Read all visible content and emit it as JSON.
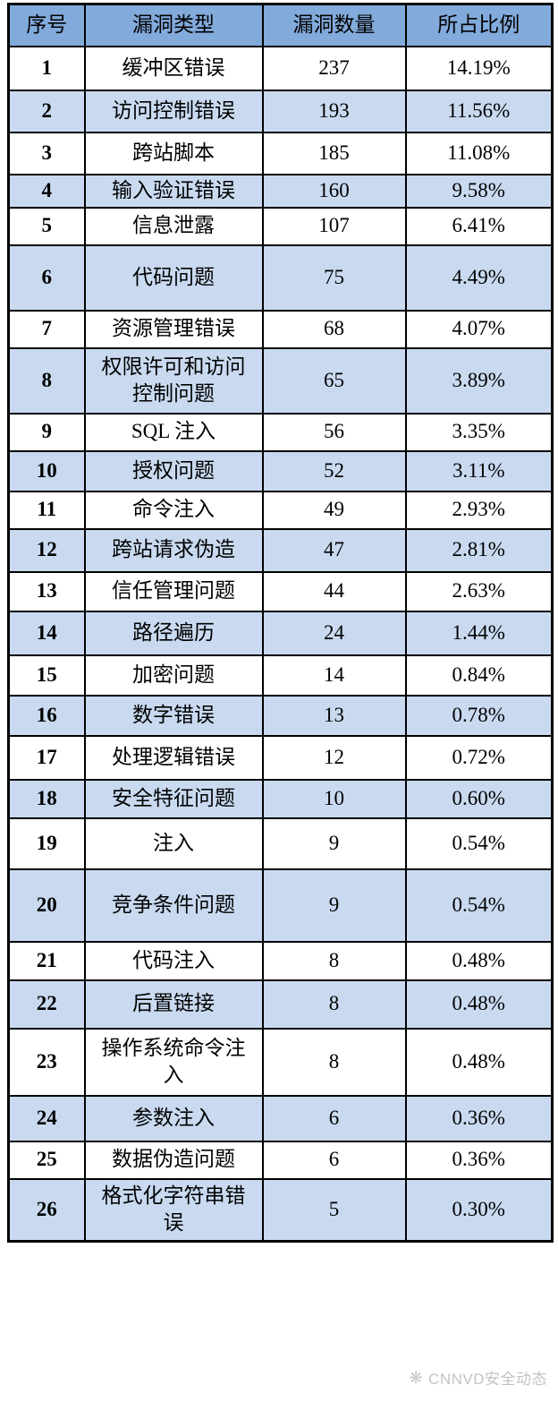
{
  "table": {
    "headers": [
      "序号",
      "漏洞类型",
      "漏洞数量",
      "所占比例"
    ],
    "rows": [
      {
        "no": "1",
        "type": "缓冲区错误",
        "count": "237",
        "pct": "14.19%"
      },
      {
        "no": "2",
        "type": "访问控制错误",
        "count": "193",
        "pct": "11.56%"
      },
      {
        "no": "3",
        "type": "跨站脚本",
        "count": "185",
        "pct": "11.08%"
      },
      {
        "no": "4",
        "type": "输入验证错误",
        "count": "160",
        "pct": "9.58%"
      },
      {
        "no": "5",
        "type": "信息泄露",
        "count": "107",
        "pct": "6.41%"
      },
      {
        "no": "6",
        "type": "代码问题",
        "count": "75",
        "pct": "4.49%"
      },
      {
        "no": "7",
        "type": "资源管理错误",
        "count": "68",
        "pct": "4.07%"
      },
      {
        "no": "8",
        "type": "权限许可和访问控制问题",
        "count": "65",
        "pct": "3.89%"
      },
      {
        "no": "9",
        "type": "SQL 注入",
        "count": "56",
        "pct": "3.35%"
      },
      {
        "no": "10",
        "type": "授权问题",
        "count": "52",
        "pct": "3.11%"
      },
      {
        "no": "11",
        "type": "命令注入",
        "count": "49",
        "pct": "2.93%"
      },
      {
        "no": "12",
        "type": "跨站请求伪造",
        "count": "47",
        "pct": "2.81%"
      },
      {
        "no": "13",
        "type": "信任管理问题",
        "count": "44",
        "pct": "2.63%"
      },
      {
        "no": "14",
        "type": "路径遍历",
        "count": "24",
        "pct": "1.44%"
      },
      {
        "no": "15",
        "type": "加密问题",
        "count": "14",
        "pct": "0.84%"
      },
      {
        "no": "16",
        "type": "数字错误",
        "count": "13",
        "pct": "0.78%"
      },
      {
        "no": "17",
        "type": "处理逻辑错误",
        "count": "12",
        "pct": "0.72%"
      },
      {
        "no": "18",
        "type": "安全特征问题",
        "count": "10",
        "pct": "0.60%"
      },
      {
        "no": "19",
        "type": "注入",
        "count": "9",
        "pct": "0.54%"
      },
      {
        "no": "20",
        "type": "竞争条件问题",
        "count": "9",
        "pct": "0.54%"
      },
      {
        "no": "21",
        "type": "代码注入",
        "count": "8",
        "pct": "0.48%"
      },
      {
        "no": "22",
        "type": "后置链接",
        "count": "8",
        "pct": "0.48%"
      },
      {
        "no": "23",
        "type": "操作系统命令注入",
        "count": "8",
        "pct": "0.48%"
      },
      {
        "no": "24",
        "type": "参数注入",
        "count": "6",
        "pct": "0.36%"
      },
      {
        "no": "25",
        "type": "数据伪造问题",
        "count": "6",
        "pct": "0.36%"
      },
      {
        "no": "26",
        "type": "格式化字符串错误",
        "count": "5",
        "pct": "0.30%"
      }
    ]
  },
  "watermark": {
    "label": "CNNVD安全动态",
    "icon": "starburst-logo"
  },
  "colors": {
    "header_bg": "#82aadb",
    "alt_row_bg": "#c9daf0",
    "border": "#000000",
    "text": "#000000",
    "watermark_text": "#c3c3c3"
  },
  "chart_data": {
    "type": "table",
    "title": "",
    "columns": [
      "序号",
      "漏洞类型",
      "漏洞数量",
      "所占比例"
    ],
    "categories": [
      "缓冲区错误",
      "访问控制错误",
      "跨站脚本",
      "输入验证错误",
      "信息泄露",
      "代码问题",
      "资源管理错误",
      "权限许可和访问控制问题",
      "SQL 注入",
      "授权问题",
      "命令注入",
      "跨站请求伪造",
      "信任管理问题",
      "路径遍历",
      "加密问题",
      "数字错误",
      "处理逻辑错误",
      "安全特征问题",
      "注入",
      "竞争条件问题",
      "代码注入",
      "后置链接",
      "操作系统命令注入",
      "参数注入",
      "数据伪造问题",
      "格式化字符串错误"
    ],
    "values": [
      237,
      193,
      185,
      160,
      107,
      75,
      68,
      65,
      56,
      52,
      49,
      47,
      44,
      24,
      14,
      13,
      12,
      10,
      9,
      9,
      8,
      8,
      8,
      6,
      6,
      5
    ],
    "percentages": [
      14.19,
      11.56,
      11.08,
      9.58,
      6.41,
      4.49,
      4.07,
      3.89,
      3.35,
      3.11,
      2.93,
      2.81,
      2.63,
      1.44,
      0.84,
      0.78,
      0.72,
      0.6,
      0.54,
      0.54,
      0.48,
      0.48,
      0.48,
      0.36,
      0.36,
      0.3
    ]
  }
}
